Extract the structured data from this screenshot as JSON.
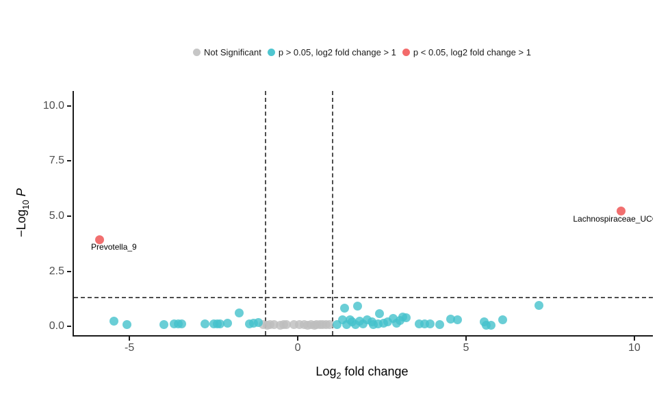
{
  "legend": {
    "items": [
      {
        "label": "Not Significant",
        "color": "#c6c6c6"
      },
      {
        "label": "p > 0.05, log2 fold change > 1",
        "color": "#4fc6d0"
      },
      {
        "label": "p < 0.05, log2 fold change > 1",
        "color": "#f36b6b"
      }
    ]
  },
  "axis_titles": {
    "x": {
      "prefix": "Log",
      "sub": "2",
      "rest": " fold change"
    },
    "y": {
      "prefix": "−Log",
      "sub": "10",
      "italic": "P"
    }
  },
  "chart_data": {
    "type": "scatter",
    "title": "",
    "xlabel": "Log2 fold change",
    "ylabel": "-Log10 P",
    "grid": false,
    "legend_position": "top-center",
    "x_range": [
      -6.69,
      10.51
    ],
    "y_range": [
      -0.4,
      10.68
    ],
    "x_ticks": {
      "values": [
        -5,
        0,
        5,
        10
      ],
      "labels": [
        "-5",
        "0",
        "5",
        "10"
      ]
    },
    "y_ticks": {
      "values": [
        0,
        2.5,
        5,
        7.5,
        10
      ],
      "labels": [
        "0.0",
        "2.5",
        "5.0",
        "7.5",
        "10.0"
      ]
    },
    "vlines": [
      {
        "x": -1,
        "style": "dashed"
      },
      {
        "x": 1,
        "style": "dashed"
      }
    ],
    "hlines": [
      {
        "y": 1.3,
        "style": "dashed"
      }
    ],
    "series": [
      {
        "name": "Not Significant",
        "color": "#bdbdbd",
        "opacity": 0.8,
        "points": [
          [
            -1.06,
            0.07
          ],
          [
            -0.95,
            0.06
          ],
          [
            -0.87,
            0.07
          ],
          [
            -0.75,
            0.07
          ],
          [
            -0.57,
            0.04
          ],
          [
            -0.45,
            0.08
          ],
          [
            -0.37,
            0.07
          ],
          [
            -0.16,
            0.07
          ],
          [
            0.0,
            0.07
          ],
          [
            0.16,
            0.07
          ],
          [
            0.25,
            0.06
          ],
          [
            0.35,
            0.07
          ],
          [
            0.45,
            0.06
          ],
          [
            0.51,
            0.07
          ],
          [
            0.61,
            0.07
          ],
          [
            0.7,
            0.08
          ],
          [
            0.81,
            0.07
          ],
          [
            0.91,
            0.07
          ]
        ]
      },
      {
        "name": "p > 0.05, log2 fold change > 1",
        "color": "#45c2cc",
        "opacity": 0.8,
        "points": [
          [
            -5.5,
            0.25
          ],
          [
            -5.12,
            0.07
          ],
          [
            -4.02,
            0.07
          ],
          [
            -3.72,
            0.12
          ],
          [
            -3.58,
            0.1
          ],
          [
            -3.48,
            0.1
          ],
          [
            -2.8,
            0.1
          ],
          [
            -2.54,
            0.1
          ],
          [
            -2.44,
            0.1
          ],
          [
            -2.34,
            0.1
          ],
          [
            -2.13,
            0.13
          ],
          [
            -1.79,
            0.6
          ],
          [
            -1.48,
            0.1
          ],
          [
            -1.36,
            0.13
          ],
          [
            -1.22,
            0.16
          ],
          [
            1.12,
            0.07
          ],
          [
            1.28,
            0.31
          ],
          [
            1.36,
            0.84
          ],
          [
            1.42,
            0.07
          ],
          [
            1.52,
            0.31
          ],
          [
            1.58,
            0.2
          ],
          [
            1.68,
            0.07
          ],
          [
            1.73,
            0.93
          ],
          [
            1.79,
            0.25
          ],
          [
            1.9,
            0.1
          ],
          [
            2.03,
            0.31
          ],
          [
            2.17,
            0.2
          ],
          [
            2.2,
            0.07
          ],
          [
            2.34,
            0.12
          ],
          [
            2.38,
            0.59
          ],
          [
            2.5,
            0.15
          ],
          [
            2.64,
            0.2
          ],
          [
            2.8,
            0.37
          ],
          [
            2.9,
            0.15
          ],
          [
            3.0,
            0.28
          ],
          [
            3.08,
            0.43
          ],
          [
            3.19,
            0.4
          ],
          [
            3.56,
            0.12
          ],
          [
            3.72,
            0.12
          ],
          [
            3.9,
            0.12
          ],
          [
            4.17,
            0.07
          ],
          [
            4.5,
            0.34
          ],
          [
            4.7,
            0.31
          ],
          [
            5.5,
            0.19
          ],
          [
            5.55,
            0.06
          ],
          [
            5.7,
            0.06
          ],
          [
            6.05,
            0.31
          ],
          [
            7.13,
            0.96
          ]
        ]
      },
      {
        "name": "p < 0.05, log2 fold change > 1",
        "color": "#f05f5f",
        "opacity": 0.9,
        "points": [
          {
            "x": -5.93,
            "y": 3.94,
            "label": "Prevotella_9",
            "label_dx": 21,
            "label_dy": 5
          },
          {
            "x": 9.57,
            "y": 5.22,
            "label": "Lachnospiraceae_UCG",
            "label_dx": -8,
            "label_dy": 5
          }
        ]
      }
    ]
  }
}
